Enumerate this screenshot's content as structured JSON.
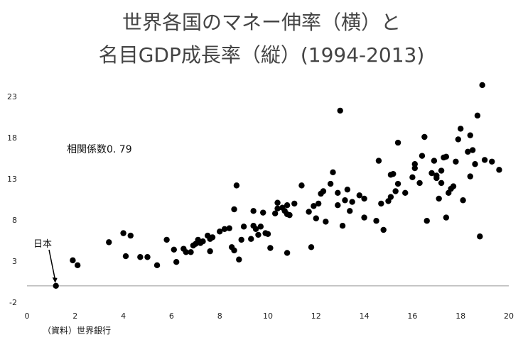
{
  "chart_data": {
    "type": "scatter",
    "title_line1": "世界各国のマネー伸率（横）と",
    "title_line2": "名目GDP成長率（縦）(1994-2013)",
    "xlabel": "",
    "ylabel": "",
    "xlim": [
      0,
      20
    ],
    "ylim": [
      -2,
      25
    ],
    "x_ticks": [
      "0",
      "2",
      "4",
      "6",
      "8",
      "10",
      "12",
      "14",
      "16",
      "18",
      "20"
    ],
    "y_ticks": [
      "-2",
      "3",
      "8",
      "13",
      "18",
      "23"
    ],
    "grid": false,
    "annotation": "相関係数0. 79",
    "highlight_label": "日本",
    "highlight_point": [
      1.2,
      0
    ],
    "source": "（資料）世界銀行",
    "points": [
      [
        1.2,
        0.0
      ],
      [
        1.9,
        3.1
      ],
      [
        2.1,
        2.5
      ],
      [
        3.4,
        5.3
      ],
      [
        4.0,
        6.4
      ],
      [
        4.1,
        3.6
      ],
      [
        4.3,
        6.1
      ],
      [
        4.7,
        3.5
      ],
      [
        5.0,
        3.5
      ],
      [
        5.4,
        2.5
      ],
      [
        5.8,
        5.6
      ],
      [
        6.1,
        4.4
      ],
      [
        6.2,
        2.9
      ],
      [
        6.5,
        4.5
      ],
      [
        6.6,
        4.1
      ],
      [
        6.8,
        4.1
      ],
      [
        6.9,
        4.9
      ],
      [
        7.0,
        5.1
      ],
      [
        7.1,
        5.6
      ],
      [
        7.2,
        5.2
      ],
      [
        7.3,
        5.4
      ],
      [
        7.5,
        6.1
      ],
      [
        7.6,
        5.7
      ],
      [
        7.7,
        5.9
      ],
      [
        7.6,
        4.2
      ],
      [
        8.0,
        6.6
      ],
      [
        8.2,
        6.9
      ],
      [
        8.4,
        7.0
      ],
      [
        8.5,
        4.7
      ],
      [
        8.6,
        4.3
      ],
      [
        8.6,
        9.3
      ],
      [
        8.7,
        12.2
      ],
      [
        8.8,
        3.2
      ],
      [
        8.9,
        5.6
      ],
      [
        9.0,
        7.2
      ],
      [
        9.3,
        5.7
      ],
      [
        9.4,
        7.3
      ],
      [
        9.4,
        9.1
      ],
      [
        9.5,
        6.9
      ],
      [
        9.6,
        6.2
      ],
      [
        9.7,
        7.2
      ],
      [
        9.8,
        8.9
      ],
      [
        9.9,
        6.4
      ],
      [
        10.0,
        6.3
      ],
      [
        10.1,
        4.6
      ],
      [
        10.3,
        8.8
      ],
      [
        10.4,
        9.4
      ],
      [
        10.4,
        10.1
      ],
      [
        10.6,
        9.5
      ],
      [
        10.7,
        9.1
      ],
      [
        10.8,
        9.8
      ],
      [
        10.8,
        8.7
      ],
      [
        10.9,
        8.6
      ],
      [
        10.8,
        4.0
      ],
      [
        11.1,
        10.0
      ],
      [
        11.4,
        12.2
      ],
      [
        11.7,
        9.0
      ],
      [
        11.8,
        4.7
      ],
      [
        11.9,
        9.7
      ],
      [
        12.0,
        8.2
      ],
      [
        12.1,
        10.0
      ],
      [
        12.2,
        11.2
      ],
      [
        12.3,
        11.5
      ],
      [
        12.4,
        7.8
      ],
      [
        12.6,
        12.4
      ],
      [
        12.7,
        13.8
      ],
      [
        12.9,
        11.3
      ],
      [
        12.9,
        9.8
      ],
      [
        13.0,
        21.3
      ],
      [
        13.1,
        7.3
      ],
      [
        13.2,
        10.4
      ],
      [
        13.3,
        11.7
      ],
      [
        13.4,
        9.1
      ],
      [
        13.5,
        10.2
      ],
      [
        13.8,
        11.0
      ],
      [
        14.0,
        10.6
      ],
      [
        14.0,
        8.3
      ],
      [
        14.5,
        7.9
      ],
      [
        14.6,
        15.2
      ],
      [
        14.7,
        10.0
      ],
      [
        14.8,
        6.8
      ],
      [
        15.0,
        10.3
      ],
      [
        15.1,
        13.5
      ],
      [
        15.1,
        10.8
      ],
      [
        15.2,
        13.6
      ],
      [
        15.3,
        11.5
      ],
      [
        15.4,
        17.4
      ],
      [
        15.4,
        12.4
      ],
      [
        15.7,
        11.3
      ],
      [
        16.0,
        13.2
      ],
      [
        16.1,
        14.3
      ],
      [
        16.1,
        14.8
      ],
      [
        16.3,
        12.5
      ],
      [
        16.4,
        15.8
      ],
      [
        16.5,
        18.1
      ],
      [
        16.6,
        7.9
      ],
      [
        16.8,
        13.7
      ],
      [
        16.9,
        15.2
      ],
      [
        17.0,
        13.4
      ],
      [
        17.0,
        13.1
      ],
      [
        17.1,
        10.6
      ],
      [
        17.2,
        12.5
      ],
      [
        17.2,
        14.0
      ],
      [
        17.3,
        15.6
      ],
      [
        17.4,
        15.7
      ],
      [
        17.4,
        8.3
      ],
      [
        17.5,
        11.3
      ],
      [
        17.6,
        11.8
      ],
      [
        17.7,
        12.1
      ],
      [
        17.8,
        15.1
      ],
      [
        17.9,
        17.8
      ],
      [
        18.0,
        19.1
      ],
      [
        18.1,
        10.4
      ],
      [
        18.3,
        16.3
      ],
      [
        18.4,
        18.3
      ],
      [
        18.4,
        13.3
      ],
      [
        18.5,
        16.5
      ],
      [
        18.6,
        14.8
      ],
      [
        18.7,
        20.7
      ],
      [
        18.8,
        6.0
      ],
      [
        18.9,
        24.4
      ],
      [
        19.0,
        15.3
      ],
      [
        19.3,
        15.1
      ],
      [
        19.6,
        14.1
      ]
    ]
  }
}
